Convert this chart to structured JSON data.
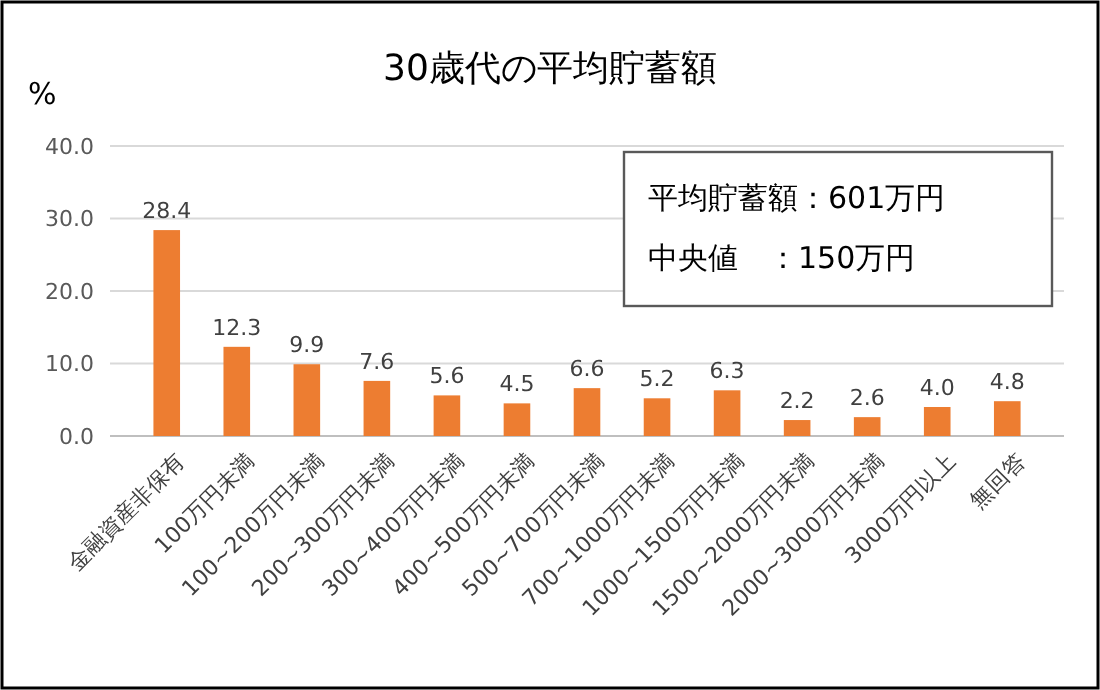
{
  "chart_data": {
    "type": "bar",
    "title": "30歳代の平均貯蓄額",
    "ylabel": "%",
    "categories": [
      "金融資産非保有",
      "100万円未満",
      "100~200万円未満",
      "200~300万円未満",
      "300~400万円未満",
      "400~500万円未満",
      "500~700万円未満",
      "700~1000万円未満",
      "1000~1500万円未満",
      "1500~2000万円未満",
      "2000~3000万円未満",
      "3000万円以上",
      "無回答"
    ],
    "values": [
      28.4,
      12.3,
      9.9,
      7.6,
      5.6,
      4.5,
      6.6,
      5.2,
      6.3,
      2.2,
      2.6,
      4.0,
      4.8
    ],
    "value_labels": [
      "28.4",
      "12.3",
      "9.9",
      "7.6",
      "5.6",
      "4.5",
      "6.6",
      "5.2",
      "6.3",
      "2.2",
      "2.6",
      "4.0",
      "4.8"
    ],
    "color": "#ed7d31",
    "ylim": [
      0,
      40
    ],
    "yticks": [
      {
        "value": 0,
        "label": "0.0"
      },
      {
        "value": 10,
        "label": "10.0"
      },
      {
        "value": 20,
        "label": "20.0"
      },
      {
        "value": 30,
        "label": "30.0"
      },
      {
        "value": 40,
        "label": "40.0"
      }
    ],
    "grid": "y",
    "annotations": [
      "平均貯蓄額：601万円",
      "中央値　：150万円"
    ]
  }
}
